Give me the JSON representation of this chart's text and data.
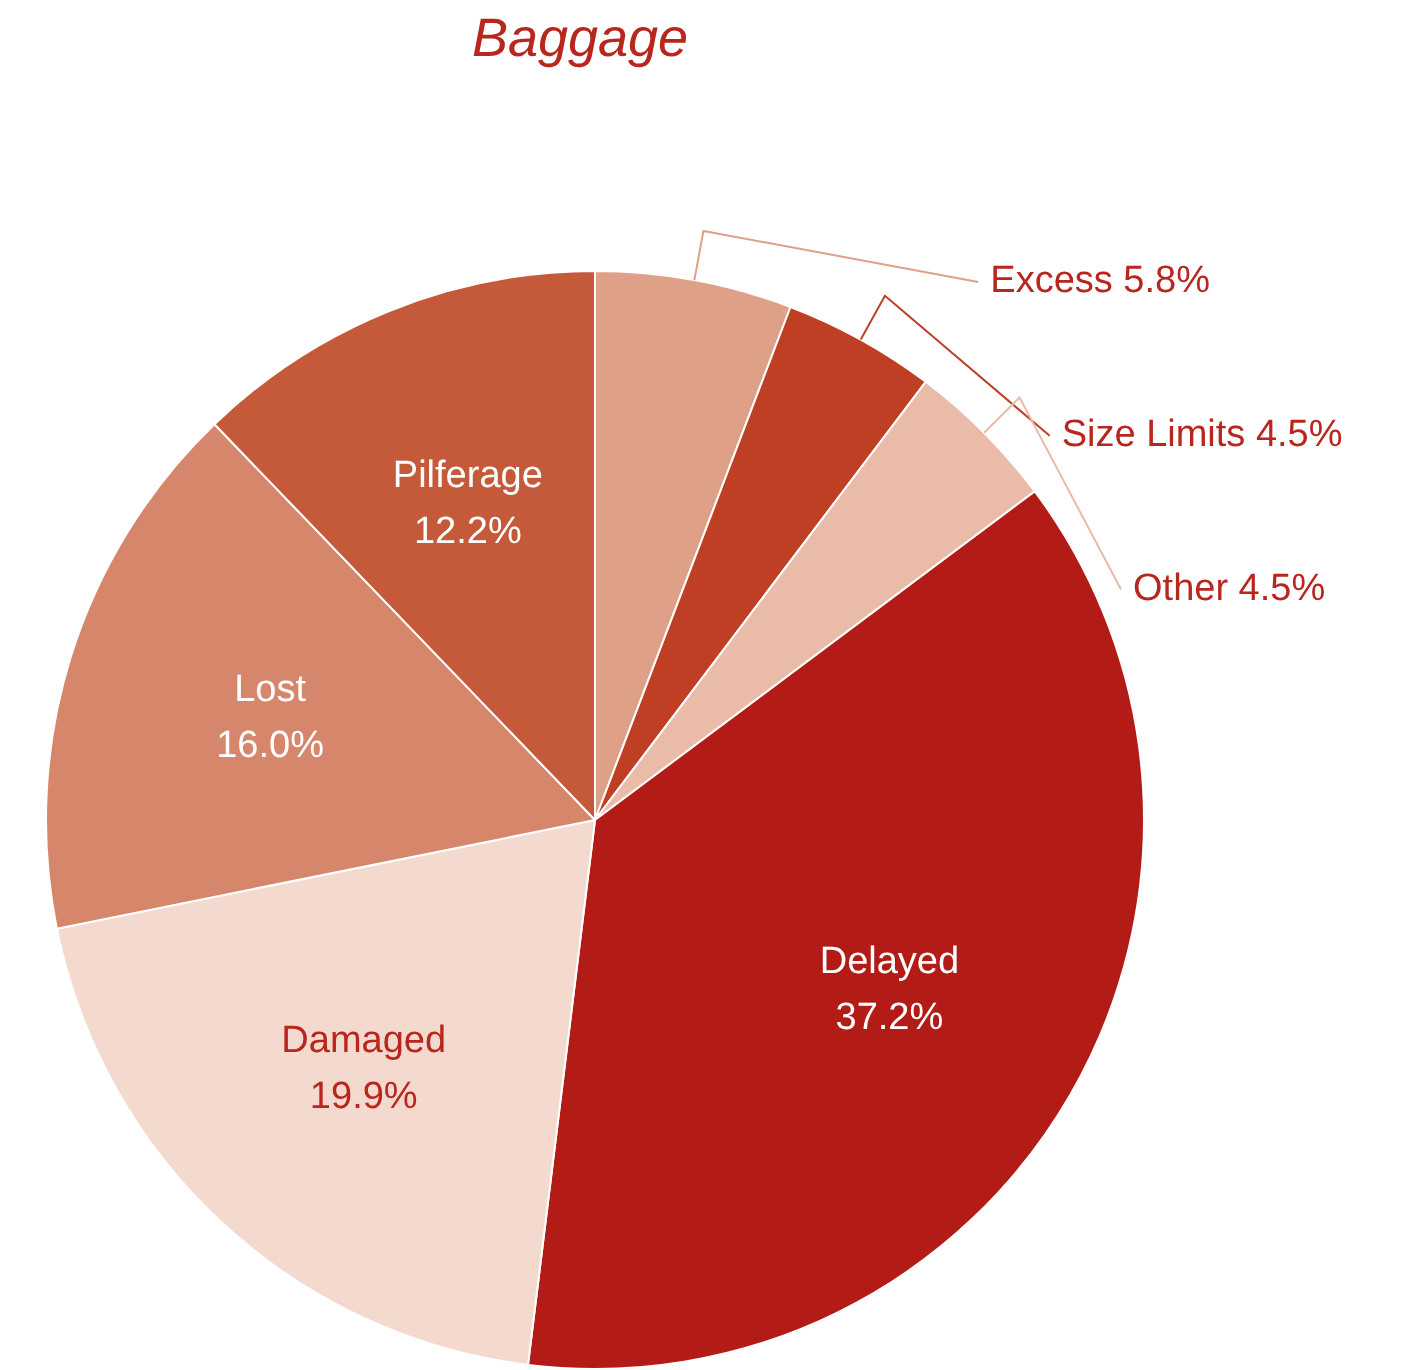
{
  "chart_data": {
    "type": "pie",
    "title": "Baggage",
    "categories": [
      "Excess",
      "Size Limits",
      "Other",
      "Delayed",
      "Damaged",
      "Lost",
      "Pilferage"
    ],
    "values": [
      5.8,
      4.5,
      4.5,
      37.2,
      19.9,
      16.0,
      12.2
    ],
    "colors": [
      "#dfa088",
      "#bf3f25",
      "#eabba8",
      "#b31b17",
      "#f4d9cf",
      "#d6866a",
      "#c55a3a"
    ],
    "value_labels": [
      "5.8%",
      "4.5%",
      "4.5%",
      "37.2%",
      "19.9%",
      "16.0%",
      "12.2%"
    ],
    "legend": false
  }
}
